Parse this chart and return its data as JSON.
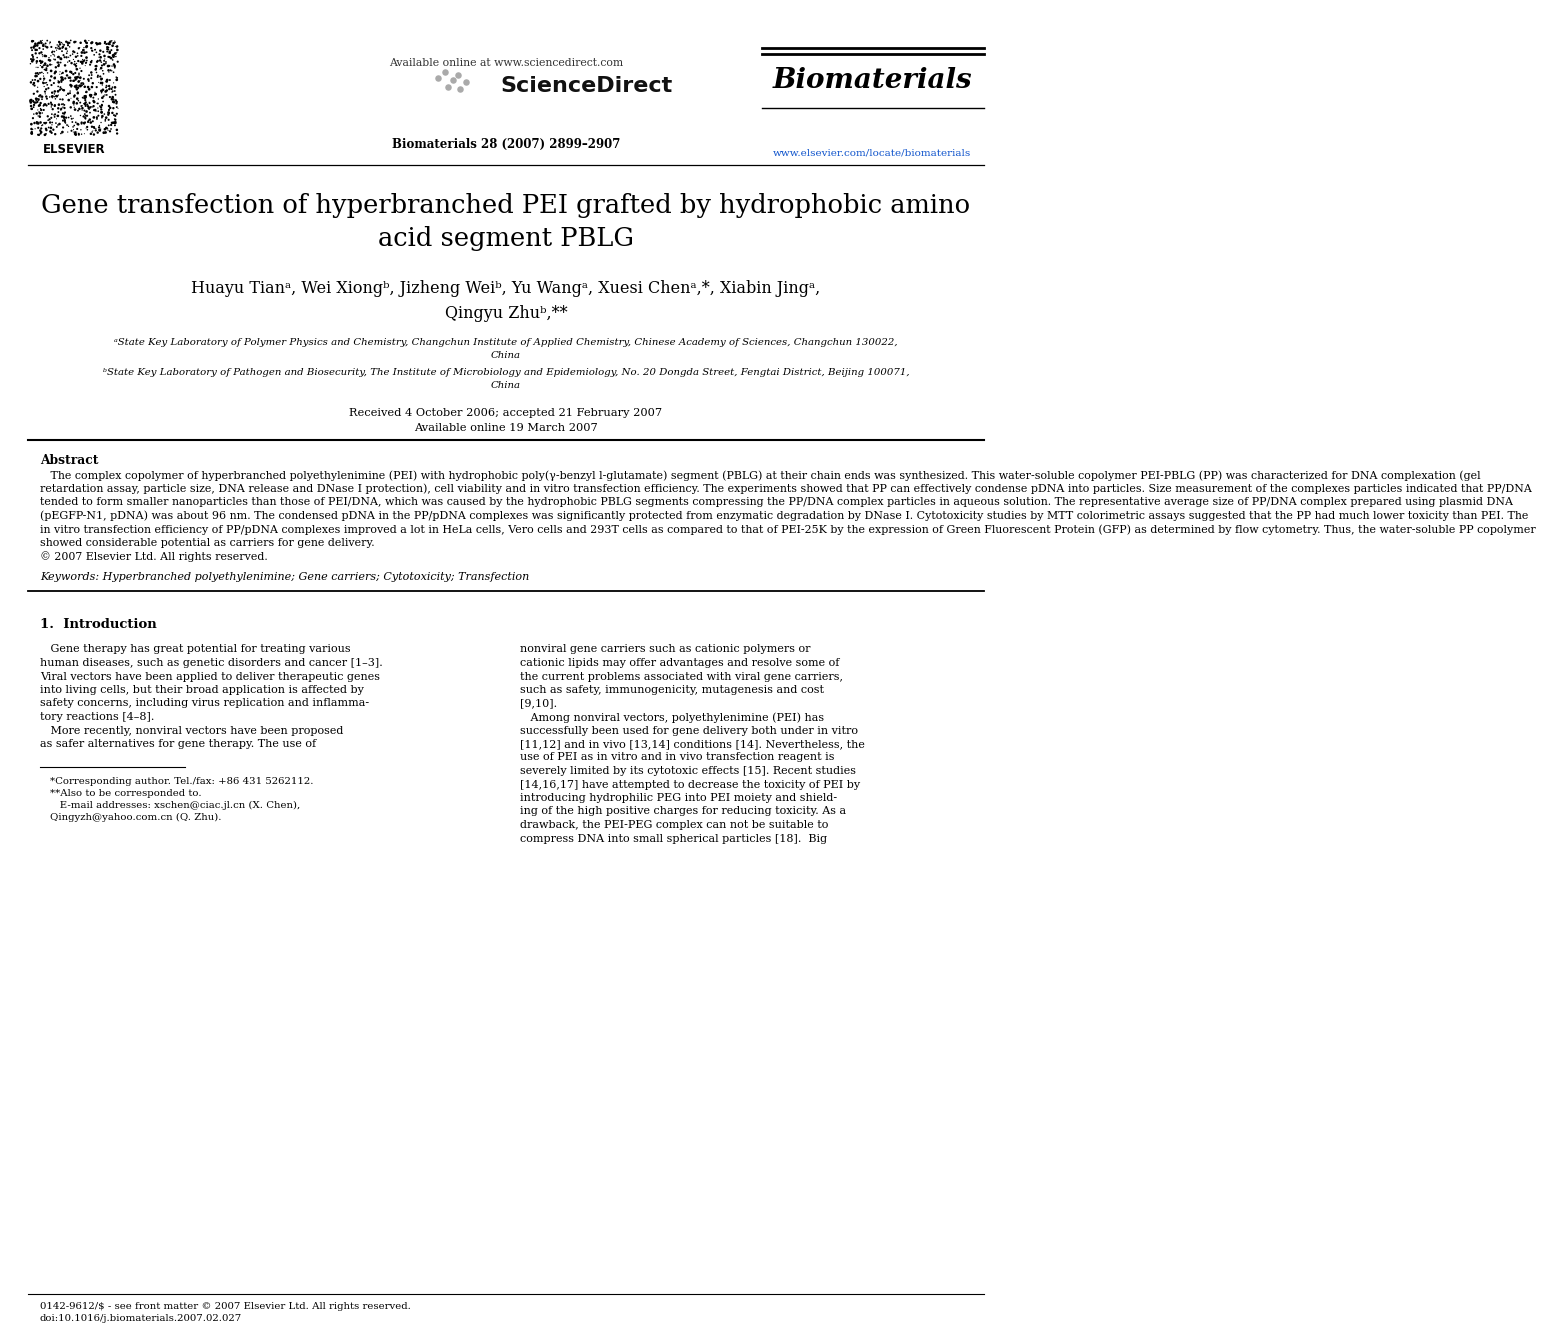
{
  "bg_color": "#ffffff",
  "header": {
    "available_online": "Available online at www.sciencedirect.com",
    "sciencedirect": "ScienceDirect",
    "journal_name": "Biomaterials",
    "journal_ref": "Biomaterials 28 (2007) 2899–2907",
    "journal_url": "www.elsevier.com/locate/biomaterials",
    "elsevier": "ELSEVIER"
  },
  "title": "Gene transfection of hyperbranched PEI grafted by hydrophobic amino\nacid segment PBLG",
  "authors": "Huayu Tianᵃ, Wei Xiongᵇ, Jizheng Weiᵇ, Yu Wangᵃ, Xuesi Chenᵃ,*, Xiabin Jingᵃ,\nQingyu Zhuᵇ,**",
  "affil_a": "ᵃState Key Laboratory of Polymer Physics and Chemistry, Changchun Institute of Applied Chemistry, Chinese Academy of Sciences, Changchun 130022,\nChina",
  "affil_b": "ᵇState Key Laboratory of Pathogen and Biosecurity, The Institute of Microbiology and Epidemiology, No. 20 Dongda Street, Fengtai District, Beijing 100071,\nChina",
  "received": "Received 4 October 2006; accepted 21 February 2007",
  "available": "Available online 19 March 2007",
  "abstract_title": "Abstract",
  "abstract_lines": [
    "   The complex copolymer of hyperbranched polyethylenimine (PEI) with hydrophobic poly(γ-benzyl l-glutamate) segment (PBLG) at their chain ends was synthesized. This water-soluble copolymer PEI-PBLG (PP) was characterized for DNA complexation (gel",
    "retardation assay, particle size, DNA release and DNase I protection), cell viability and in vitro transfection efficiency. The experiments showed that PP can effectively condense pDNA into particles. Size measurement of the complexes particles indicated that PP/DNA",
    "tended to form smaller nanoparticles than those of PEI/DNA, which was caused by the hydrophobic PBLG segments compressing the PP/DNA complex particles in aqueous solution. The representative average size of PP/DNA complex prepared using plasmid DNA",
    "(pEGFP-N1, pDNA) was about 96 nm. The condensed pDNA in the PP/pDNA complexes was significantly protected from enzymatic degradation by DNase I. Cytotoxicity studies by MTT colorimetric assays suggested that the PP had much lower toxicity than PEI. The",
    "in vitro transfection efficiency of PP/pDNA complexes improved a lot in HeLa cells, Vero cells and 293T cells as compared to that of PEI-25K by the expression of Green Fluorescent Protein (GFP) as determined by flow cytometry. Thus, the water-soluble PP copolymer",
    "showed considerable potential as carriers for gene delivery.",
    "© 2007 Elsevier Ltd. All rights reserved."
  ],
  "keywords": "Keywords: Hyperbranched polyethylenimine; Gene carriers; Cytotoxicity; Transfection",
  "intro_title": "1.  Introduction",
  "intro_col1_lines": [
    "   Gene therapy has great potential for treating various",
    "human diseases, such as genetic disorders and cancer [1–3].",
    "Viral vectors have been applied to deliver therapeutic genes",
    "into living cells, but their broad application is affected by",
    "safety concerns, including virus replication and inflamma-",
    "tory reactions [4–8].",
    "   More recently, nonviral vectors have been proposed",
    "as safer alternatives for gene therapy. The use of"
  ],
  "intro_col2_lines": [
    "nonviral gene carriers such as cationic polymers or",
    "cationic lipids may offer advantages and resolve some of",
    "the current problems associated with viral gene carriers,",
    "such as safety, immunogenicity, mutagenesis and cost",
    "[9,10].",
    "   Among nonviral vectors, polyethylenimine (PEI) has",
    "successfully been used for gene delivery both under in vitro",
    "[11,12] and in vivo [13,14] conditions [14]. Nevertheless, the",
    "use of PEI as in vitro and in vivo transfection reagent is",
    "severely limited by its cytotoxic effects [15]. Recent studies",
    "[14,16,17] have attempted to decrease the toxicity of PEI by",
    "introducing hydrophilic PEG into PEI moiety and shield-",
    "ing of the high positive charges for reducing toxicity. As a",
    "drawback, the PEI-PEG complex can not be suitable to",
    "compress DNA into small spherical particles [18].  Big"
  ],
  "footnote1": "*Corresponding author. Tel./fax: +86 431 5262112.",
  "footnote2": "**Also to be corresponded to.",
  "footnote3": "   E-mail addresses: xschen@ciac.jl.cn (X. Chen),",
  "footnote4": "Qingyzh@yahoo.com.cn (Q. Zhu).",
  "bottom_line1": "0142-9612/$ - see front matter © 2007 Elsevier Ltd. All rights reserved.",
  "bottom_line2": "doi:10.1016/j.biomaterials.2007.02.027"
}
